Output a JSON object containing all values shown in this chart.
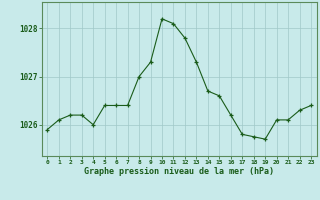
{
  "x": [
    0,
    1,
    2,
    3,
    4,
    5,
    6,
    7,
    8,
    9,
    10,
    11,
    12,
    13,
    14,
    15,
    16,
    17,
    18,
    19,
    20,
    21,
    22,
    23
  ],
  "y": [
    1025.9,
    1026.1,
    1026.2,
    1026.2,
    1026.0,
    1026.4,
    1026.4,
    1026.4,
    1027.0,
    1027.3,
    1028.2,
    1028.1,
    1027.8,
    1027.3,
    1026.7,
    1026.6,
    1026.2,
    1025.8,
    1025.75,
    1025.7,
    1026.1,
    1026.1,
    1026.3,
    1026.4
  ],
  "line_color": "#1a5c1a",
  "marker_color": "#1a5c1a",
  "bg_color": "#c8eaea",
  "grid_color": "#a0c8c8",
  "xlabel": "Graphe pression niveau de la mer (hPa)",
  "xlabel_color": "#1a5c1a",
  "tick_color": "#1a5c1a",
  "ytick_labels": [
    1026,
    1027,
    1028
  ],
  "ylim": [
    1025.35,
    1028.55
  ],
  "xlim": [
    -0.5,
    23.5
  ],
  "axis_color": "#5a8a5a"
}
